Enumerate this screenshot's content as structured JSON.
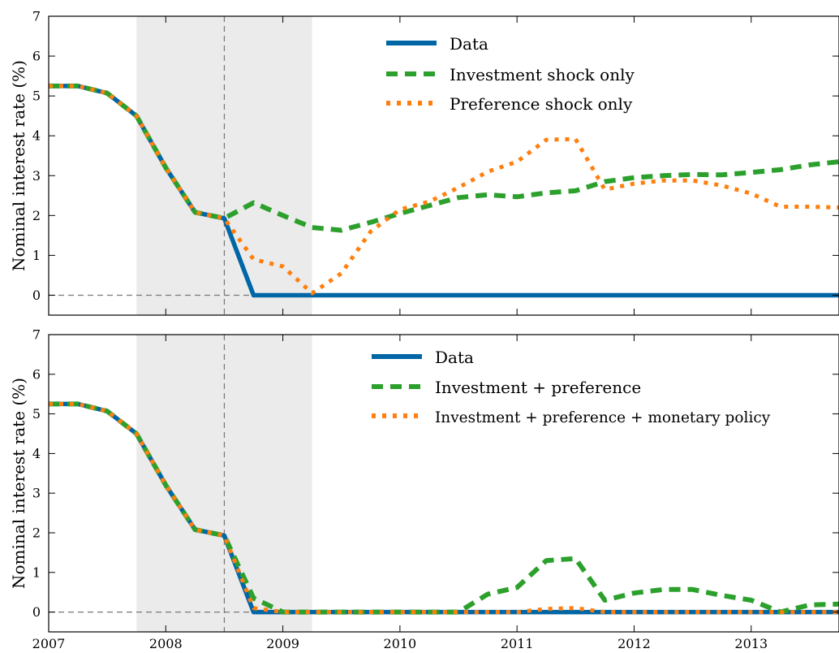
{
  "chart_data": [
    {
      "type": "line",
      "xlim": [
        2007.0,
        2013.75
      ],
      "ylim": [
        -0.5,
        7
      ],
      "ylabel": "Nominal interest rate (%)",
      "xticks": [
        2007,
        2008,
        2009,
        2010,
        2011,
        2012,
        2013
      ],
      "xticklabels": [
        "",
        "",
        "",
        "",
        "",
        "",
        ""
      ],
      "yticks": [
        0,
        1,
        2,
        3,
        4,
        5,
        6,
        7
      ],
      "yticklabels": [
        "0",
        "1",
        "2",
        "3",
        "4",
        "5",
        "6",
        "7"
      ],
      "shaded_period": [
        2007.75,
        2009.25
      ],
      "vline": 2008.5,
      "hline": 0,
      "grid": false,
      "legend_position": "top-center",
      "series": [
        {
          "name": "Data",
          "style": "solid",
          "color": "#0066a6",
          "x": [
            2007.0,
            2007.25,
            2007.5,
            2007.75,
            2008.0,
            2008.25,
            2008.5,
            2008.75,
            2009.0,
            2009.25,
            2009.5,
            2009.75,
            2010.0,
            2010.25,
            2010.5,
            2010.75,
            2011.0,
            2011.25,
            2011.5,
            2011.75,
            2012.0,
            2012.25,
            2012.5,
            2012.75,
            2013.0,
            2013.25,
            2013.5,
            2013.75
          ],
          "y": [
            5.25,
            5.25,
            5.07,
            4.5,
            3.2,
            2.08,
            1.93,
            0.0,
            0.0,
            0.0,
            0.0,
            0.0,
            0.0,
            0.0,
            0.0,
            0.0,
            0.0,
            0.0,
            0.0,
            0.0,
            0.0,
            0.0,
            0.0,
            0.0,
            0.0,
            0.0,
            0.0,
            0.0
          ]
        },
        {
          "name": "Investment shock only",
          "style": "dashed",
          "color": "#2ca02c",
          "x": [
            2007.0,
            2007.25,
            2007.5,
            2007.75,
            2008.0,
            2008.25,
            2008.5,
            2008.75,
            2009.0,
            2009.25,
            2009.5,
            2009.75,
            2010.0,
            2010.25,
            2010.5,
            2010.75,
            2011.0,
            2011.25,
            2011.5,
            2011.75,
            2012.0,
            2012.25,
            2012.5,
            2012.75,
            2013.0,
            2013.25,
            2013.5,
            2013.75
          ],
          "y": [
            5.25,
            5.25,
            5.07,
            4.5,
            3.2,
            2.08,
            1.93,
            2.32,
            2.0,
            1.7,
            1.63,
            1.83,
            2.05,
            2.25,
            2.45,
            2.52,
            2.47,
            2.57,
            2.62,
            2.85,
            2.95,
            3.0,
            3.03,
            3.02,
            3.08,
            3.15,
            3.27,
            3.35
          ]
        },
        {
          "name": "Preference shock only",
          "style": "dotted",
          "color": "#ff7f0e",
          "x": [
            2007.0,
            2007.25,
            2007.5,
            2007.75,
            2008.0,
            2008.25,
            2008.5,
            2008.75,
            2009.0,
            2009.25,
            2009.5,
            2009.75,
            2010.0,
            2010.25,
            2010.5,
            2010.75,
            2011.0,
            2011.25,
            2011.5,
            2011.75,
            2012.0,
            2012.25,
            2012.5,
            2012.75,
            2013.0,
            2013.25,
            2013.5,
            2013.75
          ],
          "y": [
            5.25,
            5.25,
            5.07,
            4.5,
            3.2,
            2.08,
            1.93,
            0.9,
            0.72,
            0.05,
            0.55,
            1.6,
            2.15,
            2.35,
            2.7,
            3.1,
            3.35,
            3.9,
            3.92,
            2.65,
            2.8,
            2.88,
            2.88,
            2.75,
            2.55,
            2.22,
            2.22,
            2.2
          ]
        }
      ]
    },
    {
      "type": "line",
      "xlim": [
        2007.0,
        2013.75
      ],
      "ylim": [
        -0.5,
        7
      ],
      "ylabel": "Nominal interest rate (%)",
      "xticks": [
        2007,
        2008,
        2009,
        2010,
        2011,
        2012,
        2013
      ],
      "xticklabels": [
        "2007",
        "2008",
        "2009",
        "2010",
        "2011",
        "2012",
        "2013"
      ],
      "yticks": [
        0,
        1,
        2,
        3,
        4,
        5,
        6,
        7
      ],
      "yticklabels": [
        "0",
        "1",
        "2",
        "3",
        "4",
        "5",
        "6",
        "7"
      ],
      "shaded_period": [
        2007.75,
        2009.25
      ],
      "vline": 2008.5,
      "hline": 0,
      "grid": false,
      "legend_position": "top-right",
      "series": [
        {
          "name": "Data",
          "style": "solid",
          "color": "#0066a6",
          "x": [
            2007.0,
            2007.25,
            2007.5,
            2007.75,
            2008.0,
            2008.25,
            2008.5,
            2008.75,
            2009.0,
            2009.25,
            2009.5,
            2009.75,
            2010.0,
            2010.25,
            2010.5,
            2010.75,
            2011.0,
            2011.25,
            2011.5,
            2011.75,
            2012.0,
            2012.25,
            2012.5,
            2012.75,
            2013.0,
            2013.25,
            2013.5,
            2013.75
          ],
          "y": [
            5.25,
            5.25,
            5.07,
            4.5,
            3.2,
            2.08,
            1.93,
            0.0,
            0.0,
            0.0,
            0.0,
            0.0,
            0.0,
            0.0,
            0.0,
            0.0,
            0.0,
            0.0,
            0.0,
            0.0,
            0.0,
            0.0,
            0.0,
            0.0,
            0.0,
            0.0,
            0.0,
            0.0
          ]
        },
        {
          "name": "Investment + preference",
          "style": "dashed",
          "color": "#2ca02c",
          "x": [
            2007.0,
            2007.25,
            2007.5,
            2007.75,
            2008.0,
            2008.25,
            2008.5,
            2008.75,
            2009.0,
            2009.25,
            2009.5,
            2009.75,
            2010.0,
            2010.25,
            2010.5,
            2010.75,
            2011.0,
            2011.25,
            2011.5,
            2011.75,
            2012.0,
            2012.25,
            2012.5,
            2012.75,
            2013.0,
            2013.25,
            2013.5,
            2013.75
          ],
          "y": [
            5.25,
            5.25,
            5.07,
            4.5,
            3.2,
            2.08,
            1.93,
            0.35,
            0.0,
            0.0,
            0.0,
            0.0,
            0.0,
            0.0,
            0.0,
            0.45,
            0.62,
            1.3,
            1.35,
            0.3,
            0.48,
            0.57,
            0.57,
            0.42,
            0.3,
            0.0,
            0.18,
            0.2
          ]
        },
        {
          "name": "Investment + preference + monetary policy",
          "style": "dotted",
          "color": "#ff7f0e",
          "x": [
            2007.0,
            2007.25,
            2007.5,
            2007.75,
            2008.0,
            2008.25,
            2008.5,
            2008.75,
            2009.0,
            2009.25,
            2009.5,
            2009.75,
            2010.0,
            2010.25,
            2010.5,
            2010.75,
            2011.0,
            2011.25,
            2011.5,
            2011.75,
            2012.0,
            2012.25,
            2012.5,
            2012.75,
            2013.0,
            2013.25,
            2013.5,
            2013.75
          ],
          "y": [
            5.25,
            5.25,
            5.07,
            4.5,
            3.2,
            2.08,
            1.93,
            0.1,
            0.0,
            0.0,
            0.0,
            0.0,
            0.0,
            0.0,
            0.0,
            0.0,
            0.0,
            0.08,
            0.1,
            0.0,
            0.0,
            0.0,
            0.0,
            0.0,
            0.0,
            0.0,
            0.0,
            0.0
          ]
        }
      ]
    }
  ]
}
